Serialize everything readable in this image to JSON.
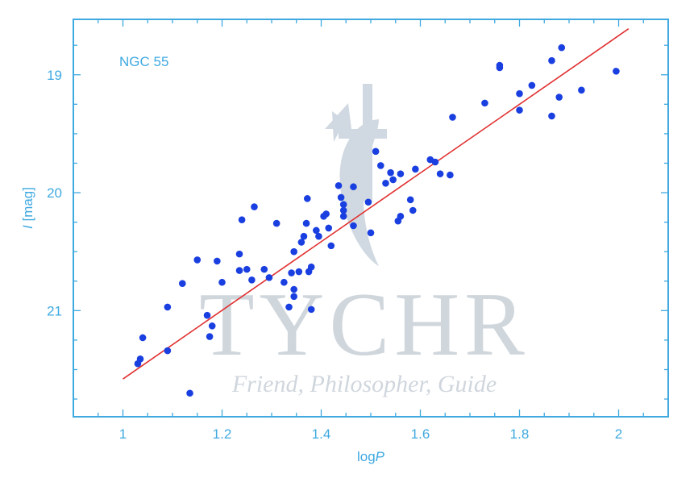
{
  "watermark": {
    "name": "TYCHR",
    "tagline": "Friend, Philosopher, Guide"
  },
  "chart_data": {
    "type": "scatter",
    "annotation": "NGC 55",
    "xlabel": {
      "base": "log",
      "italic": "P"
    },
    "ylabel": {
      "italic": "I",
      "rest": " [mag]"
    },
    "xlim": [
      0.9,
      2.1
    ],
    "ylim": [
      21.9,
      18.53
    ],
    "y_inverted": true,
    "x_ticks": [
      1,
      1.2,
      1.4,
      1.6,
      1.8,
      2
    ],
    "x_tick_labels": [
      "1",
      "1.2",
      "1.4",
      "1.6",
      "1.8",
      "2"
    ],
    "x_minor_step": 0.05,
    "y_ticks": [
      19,
      20,
      21
    ],
    "y_tick_labels": [
      "19",
      "20",
      "21"
    ],
    "y_minor_step": 0.25,
    "grid": false,
    "colors": {
      "axis": "#3fa9e0",
      "points": "#1a3fe0",
      "fit": "#e03030",
      "watermark": "#b8c2cc"
    },
    "series": [
      {
        "kind": "points",
        "points": [
          [
            1.03,
            21.45
          ],
          [
            1.035,
            21.41
          ],
          [
            1.04,
            21.23
          ],
          [
            1.09,
            21.34
          ],
          [
            1.09,
            20.97
          ],
          [
            1.12,
            20.77
          ],
          [
            1.135,
            21.7
          ],
          [
            1.15,
            20.57
          ],
          [
            1.17,
            21.04
          ],
          [
            1.175,
            21.22
          ],
          [
            1.18,
            21.13
          ],
          [
            1.19,
            20.58
          ],
          [
            1.2,
            20.76
          ],
          [
            1.235,
            20.52
          ],
          [
            1.235,
            20.66
          ],
          [
            1.24,
            20.23
          ],
          [
            1.25,
            20.65
          ],
          [
            1.26,
            20.74
          ],
          [
            1.265,
            20.12
          ],
          [
            1.285,
            20.65
          ],
          [
            1.295,
            20.72
          ],
          [
            1.31,
            20.26
          ],
          [
            1.325,
            20.76
          ],
          [
            1.335,
            20.97
          ],
          [
            1.34,
            20.68
          ],
          [
            1.345,
            20.82
          ],
          [
            1.345,
            20.88
          ],
          [
            1.345,
            20.5
          ],
          [
            1.355,
            20.67
          ],
          [
            1.36,
            20.42
          ],
          [
            1.365,
            20.37
          ],
          [
            1.37,
            20.26
          ],
          [
            1.372,
            20.05
          ],
          [
            1.375,
            20.67
          ],
          [
            1.38,
            20.63
          ],
          [
            1.38,
            20.99
          ],
          [
            1.39,
            20.32
          ],
          [
            1.395,
            20.37
          ],
          [
            1.405,
            20.2
          ],
          [
            1.41,
            20.18
          ],
          [
            1.415,
            20.3
          ],
          [
            1.42,
            20.45
          ],
          [
            1.435,
            19.94
          ],
          [
            1.44,
            20.04
          ],
          [
            1.445,
            20.1
          ],
          [
            1.445,
            20.15
          ],
          [
            1.445,
            20.2
          ],
          [
            1.465,
            19.95
          ],
          [
            1.465,
            20.28
          ],
          [
            1.495,
            20.08
          ],
          [
            1.5,
            20.34
          ],
          [
            1.51,
            19.65
          ],
          [
            1.52,
            19.77
          ],
          [
            1.53,
            19.92
          ],
          [
            1.54,
            19.83
          ],
          [
            1.545,
            19.89
          ],
          [
            1.555,
            20.24
          ],
          [
            1.56,
            20.2
          ],
          [
            1.56,
            19.84
          ],
          [
            1.58,
            20.06
          ],
          [
            1.585,
            20.15
          ],
          [
            1.59,
            19.8
          ],
          [
            1.62,
            19.72
          ],
          [
            1.63,
            19.74
          ],
          [
            1.64,
            19.84
          ],
          [
            1.66,
            19.85
          ],
          [
            1.665,
            19.36
          ],
          [
            1.73,
            19.24
          ],
          [
            1.76,
            18.92
          ],
          [
            1.76,
            18.94
          ],
          [
            1.8,
            19.16
          ],
          [
            1.8,
            19.3
          ],
          [
            1.825,
            19.09
          ],
          [
            1.865,
            19.35
          ],
          [
            1.865,
            18.88
          ],
          [
            1.88,
            19.19
          ],
          [
            1.885,
            18.77
          ],
          [
            1.925,
            19.13
          ],
          [
            1.995,
            18.97
          ]
        ]
      },
      {
        "kind": "fit_line",
        "points": [
          [
            1.0,
            21.58
          ],
          [
            2.02,
            18.61
          ]
        ]
      }
    ]
  }
}
